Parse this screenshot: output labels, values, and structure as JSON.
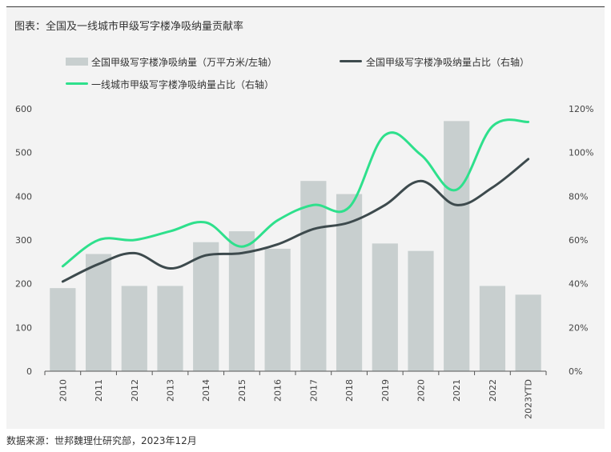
{
  "title": "图表：全国及一线城市甲级写字楼净吸纳量贡献率",
  "source": "数据来源：世邦魏理仕研究部，2023年12月",
  "colors": {
    "bar": "#c8cfcf",
    "line_national": "#3d4a4d",
    "line_tier1": "#2ee08c",
    "axis": "#555555"
  },
  "chart_data": {
    "type": "bar",
    "title": "全国及一线城市甲级写字楼净吸纳量贡献率",
    "categories": [
      "2010",
      "2011",
      "2012",
      "2013",
      "2014",
      "2015",
      "2016",
      "2017",
      "2018",
      "2019",
      "2020",
      "2021",
      "2022",
      "2023YTD"
    ],
    "y_left": {
      "range": [
        0,
        600
      ],
      "ticks": [
        "0",
        "100",
        "200",
        "300",
        "400",
        "500",
        "600"
      ]
    },
    "y_right": {
      "range": [
        0,
        120
      ],
      "ticks": [
        "0%",
        "20%",
        "40%",
        "60%",
        "80%",
        "100%",
        "120%"
      ]
    },
    "legend_position": "top",
    "grid": false,
    "series": [
      {
        "name": "全国甲级写字楼净吸纳量（万平方米/左轴）",
        "type": "bar",
        "axis": "left",
        "values": [
          190,
          268,
          195,
          195,
          295,
          320,
          280,
          435,
          405,
          292,
          275,
          572,
          195,
          175
        ]
      },
      {
        "name": "全国甲级写字楼净吸纳量占比（右轴）",
        "type": "line",
        "axis": "right",
        "values": [
          41,
          49,
          54,
          47,
          53,
          54,
          58,
          65,
          68,
          76,
          87,
          76,
          84,
          97
        ]
      },
      {
        "name": "一线城市甲级写字楼净吸纳量占比（右轴）",
        "type": "line",
        "axis": "right",
        "values": [
          48,
          60,
          60,
          64,
          68,
          57,
          69,
          76,
          75,
          108,
          99,
          83,
          112,
          114
        ]
      }
    ]
  }
}
